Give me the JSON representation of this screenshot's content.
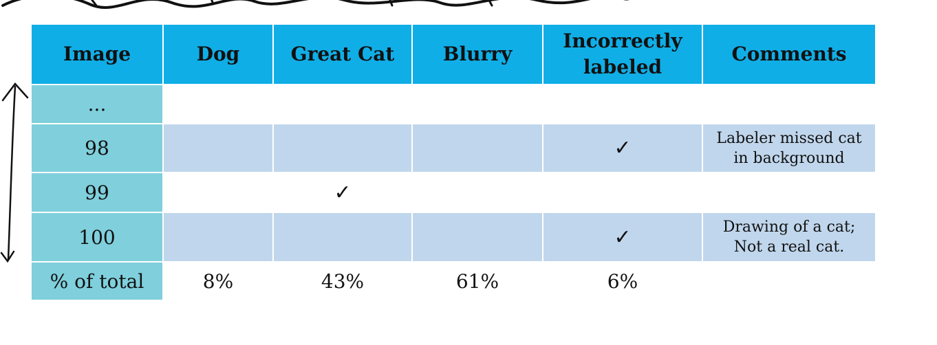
{
  "table": {
    "headers": [
      "Image",
      "Dog",
      "Great Cat",
      "Blurry",
      "Incorrectly labeled",
      "Comments"
    ],
    "header_lines": {
      "incorrectly_1": "Incorrectly",
      "incorrectly_2": "labeled"
    },
    "rows": [
      {
        "image": "...",
        "dog": "",
        "great_cat": "",
        "blurry": "",
        "incorrectly_labeled": "",
        "comment_1": "",
        "comment_2": ""
      },
      {
        "image": "98",
        "dog": "",
        "great_cat": "",
        "blurry": "",
        "incorrectly_labeled": "✓",
        "comment_1": "Labeler missed cat",
        "comment_2": "in background"
      },
      {
        "image": "99",
        "dog": "",
        "great_cat": "✓",
        "blurry": "",
        "incorrectly_labeled": "",
        "comment_1": "",
        "comment_2": ""
      },
      {
        "image": "100",
        "dog": "",
        "great_cat": "",
        "blurry": "",
        "incorrectly_labeled": "✓",
        "comment_1": "Drawing of a cat;",
        "comment_2": "Not a real cat."
      }
    ],
    "totals": {
      "label": "% of total",
      "dog": "8%",
      "great_cat": "43%",
      "blurry": "61%",
      "incorrectly_labeled": "6%",
      "comments": ""
    }
  },
  "colors": {
    "header": "#10aee7",
    "row_label": "#7fcfdc",
    "band": "#c0d6ec"
  }
}
